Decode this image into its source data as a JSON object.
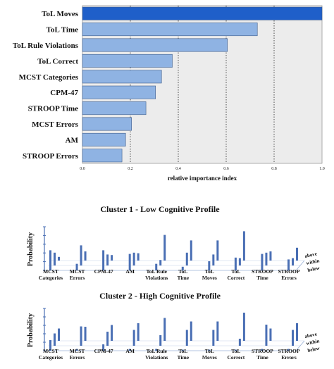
{
  "chart_data": [
    {
      "type": "bar",
      "orientation": "horizontal",
      "categories": [
        "ToL Moves",
        "ToL Time",
        "ToL Rule Violations",
        "ToL Correct",
        "MCST Categories",
        "CPM-47",
        "STROOP Time",
        "MCST Errors",
        "AM",
        "STROOP Errors"
      ],
      "values": [
        1.0,
        0.73,
        0.605,
        0.375,
        0.33,
        0.305,
        0.265,
        0.205,
        0.18,
        0.165
      ],
      "xlabel": "relative importance index",
      "xlim": [
        0,
        1
      ],
      "xticks": [
        "0.0",
        "0.2",
        "0.4",
        "0.6",
        "0.8",
        "1.0"
      ],
      "reference_lines": [
        0.2,
        0.4,
        0.6,
        0.8
      ],
      "grid": false,
      "colors": {
        "top_bar": "#1f5fc9",
        "bars": "#8fb3e3",
        "plot_bg": "#ececec"
      }
    },
    {
      "type": "bar",
      "title": "Cluster 1 - Low Cognitive Profile",
      "ylabel": "Probability",
      "depth_labels": [
        "above",
        "within",
        "below"
      ],
      "categories": [
        "MCST\nCategories",
        "MCST\nErrors",
        "CPM-47",
        "AM",
        "ToL Rule\nViolations",
        "ToL\nTime",
        "ToL\nMoves",
        "ToL\nCorrect",
        "STROOP\nTime",
        "STROOP\nErrors"
      ],
      "series": [
        {
          "name": "below",
          "values": [
            0.55,
            0.18,
            0.55,
            0.45,
            0.18,
            0.1,
            0.25,
            0.35,
            0.45,
            0.3
          ]
        },
        {
          "name": "within",
          "values": [
            0.35,
            0.55,
            0.3,
            0.35,
            0.15,
            0.35,
            0.3,
            0.2,
            0.35,
            0.2
          ]
        },
        {
          "name": "above",
          "values": [
            0.1,
            0.25,
            0.15,
            0.2,
            0.7,
            0.55,
            0.55,
            0.8,
            0.25,
            0.35
          ]
        }
      ],
      "color": "#4a6fb4"
    },
    {
      "type": "bar",
      "title": "Cluster 2 - High Cognitive Profile",
      "ylabel": "Probability",
      "depth_labels": [
        "above",
        "within",
        "below"
      ],
      "categories": [
        "MCST\nCategories",
        "MCST\nErrors",
        "CPM-47",
        "AM",
        "ToL Rule\nViolations",
        "ToL\nTime",
        "ToL\nMoves",
        "ToL\nCorrect",
        "STROOP\nTime",
        "STROOP\nErrors"
      ],
      "series": [
        {
          "name": "below",
          "values": [
            0.3,
            0.05,
            0.18,
            0.05,
            0.05,
            0.0,
            0.0,
            0.0,
            0.05,
            0.05
          ]
        },
        {
          "name": "within",
          "values": [
            0.35,
            0.55,
            0.4,
            0.45,
            0.3,
            0.45,
            0.45,
            0.2,
            0.6,
            0.45
          ]
        },
        {
          "name": "above",
          "values": [
            0.35,
            0.4,
            0.45,
            0.5,
            0.65,
            0.55,
            0.55,
            0.8,
            0.35,
            0.5
          ]
        }
      ],
      "color": "#4a6fb4"
    }
  ]
}
